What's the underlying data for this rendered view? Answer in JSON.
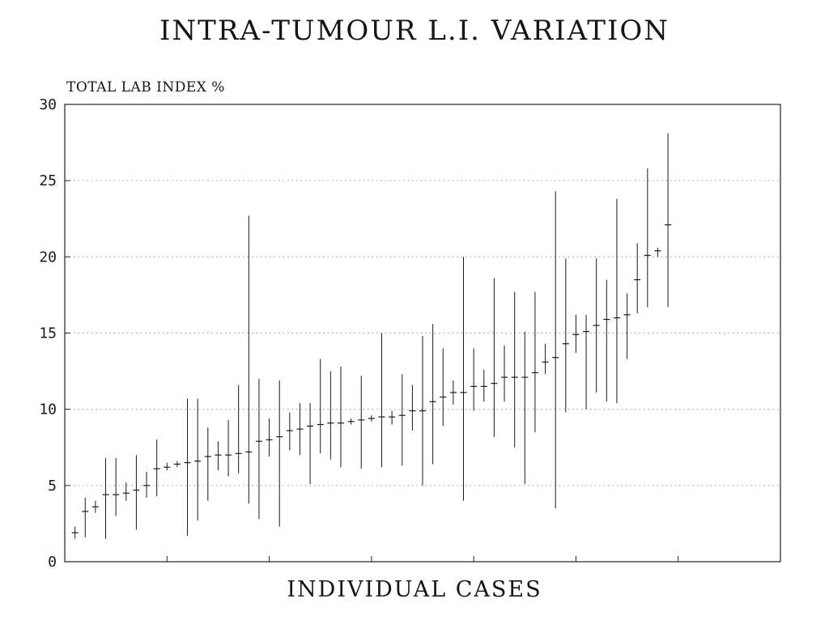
{
  "chart_data": {
    "type": "scatter",
    "title": "INTRA-TUMOUR L.I. VARIATION",
    "xlabel": "INDIVIDUAL CASES",
    "ylabel": "TOTAL LAB INDEX %",
    "ylim": [
      0,
      30
    ],
    "yticks": [
      "0",
      "5",
      "10",
      "15",
      "20",
      "25",
      "30"
    ],
    "xlim": [
      0,
      70
    ],
    "x_ticks_count": 6,
    "grid": "horizontal-dotted",
    "points": [
      {
        "x": 1,
        "y": 1.9,
        "lo": 1.5,
        "hi": 2.3
      },
      {
        "x": 2,
        "y": 3.3,
        "lo": 1.6,
        "hi": 4.2
      },
      {
        "x": 3,
        "y": 3.6,
        "lo": 3.2,
        "hi": 4.0
      },
      {
        "x": 4,
        "y": 4.4,
        "lo": 1.5,
        "hi": 6.8
      },
      {
        "x": 5,
        "y": 4.4,
        "lo": 3.0,
        "hi": 6.8
      },
      {
        "x": 6,
        "y": 4.5,
        "lo": 4.0,
        "hi": 5.2
      },
      {
        "x": 7,
        "y": 4.7,
        "lo": 2.1,
        "hi": 7.0
      },
      {
        "x": 8,
        "y": 5.0,
        "lo": 4.2,
        "hi": 5.9
      },
      {
        "x": 9,
        "y": 6.1,
        "lo": 4.3,
        "hi": 8.0
      },
      {
        "x": 10,
        "y": 6.2,
        "lo": 6.0,
        "hi": 6.5
      },
      {
        "x": 11,
        "y": 6.4,
        "lo": 6.2,
        "hi": 6.6
      },
      {
        "x": 12,
        "y": 6.5,
        "lo": 1.7,
        "hi": 10.7
      },
      {
        "x": 13,
        "y": 6.6,
        "lo": 2.7,
        "hi": 10.7
      },
      {
        "x": 14,
        "y": 6.9,
        "lo": 4.0,
        "hi": 8.8
      },
      {
        "x": 15,
        "y": 7.0,
        "lo": 6.0,
        "hi": 7.9
      },
      {
        "x": 16,
        "y": 7.0,
        "lo": 5.6,
        "hi": 9.3
      },
      {
        "x": 17,
        "y": 7.1,
        "lo": 5.8,
        "hi": 11.6
      },
      {
        "x": 18,
        "y": 7.2,
        "lo": 3.8,
        "hi": 22.7
      },
      {
        "x": 19,
        "y": 7.9,
        "lo": 2.8,
        "hi": 12.0
      },
      {
        "x": 20,
        "y": 8.0,
        "lo": 6.9,
        "hi": 9.4
      },
      {
        "x": 21,
        "y": 8.2,
        "lo": 2.3,
        "hi": 11.9
      },
      {
        "x": 22,
        "y": 8.6,
        "lo": 7.3,
        "hi": 9.8
      },
      {
        "x": 23,
        "y": 8.7,
        "lo": 7.0,
        "hi": 10.4
      },
      {
        "x": 24,
        "y": 8.9,
        "lo": 5.1,
        "hi": 10.4
      },
      {
        "x": 25,
        "y": 9.0,
        "lo": 7.1,
        "hi": 13.3
      },
      {
        "x": 26,
        "y": 9.1,
        "lo": 6.7,
        "hi": 12.5
      },
      {
        "x": 27,
        "y": 9.1,
        "lo": 6.2,
        "hi": 12.8
      },
      {
        "x": 28,
        "y": 9.2,
        "lo": 9.0,
        "hi": 9.4
      },
      {
        "x": 29,
        "y": 9.3,
        "lo": 6.1,
        "hi": 12.2
      },
      {
        "x": 30,
        "y": 9.4,
        "lo": 9.2,
        "hi": 9.6
      },
      {
        "x": 31,
        "y": 9.5,
        "lo": 6.2,
        "hi": 15.0
      },
      {
        "x": 32,
        "y": 9.5,
        "lo": 9.0,
        "hi": 9.9
      },
      {
        "x": 33,
        "y": 9.6,
        "lo": 6.3,
        "hi": 12.3
      },
      {
        "x": 34,
        "y": 9.9,
        "lo": 8.6,
        "hi": 11.6
      },
      {
        "x": 35,
        "y": 9.9,
        "lo": 5.0,
        "hi": 14.8
      },
      {
        "x": 36,
        "y": 10.5,
        "lo": 6.4,
        "hi": 15.6
      },
      {
        "x": 37,
        "y": 10.8,
        "lo": 8.9,
        "hi": 14.0
      },
      {
        "x": 38,
        "y": 11.1,
        "lo": 10.3,
        "hi": 11.9
      },
      {
        "x": 39,
        "y": 11.1,
        "lo": 4.0,
        "hi": 20.0
      },
      {
        "x": 40,
        "y": 11.5,
        "lo": 9.9,
        "hi": 14.0
      },
      {
        "x": 41,
        "y": 11.5,
        "lo": 10.5,
        "hi": 12.6
      },
      {
        "x": 42,
        "y": 11.7,
        "lo": 8.2,
        "hi": 18.6
      },
      {
        "x": 43,
        "y": 12.1,
        "lo": 10.5,
        "hi": 14.2
      },
      {
        "x": 44,
        "y": 12.1,
        "lo": 7.5,
        "hi": 17.7
      },
      {
        "x": 45,
        "y": 12.1,
        "lo": 5.1,
        "hi": 15.1
      },
      {
        "x": 46,
        "y": 12.4,
        "lo": 8.5,
        "hi": 17.7
      },
      {
        "x": 47,
        "y": 13.1,
        "lo": 12.3,
        "hi": 14.3
      },
      {
        "x": 48,
        "y": 13.4,
        "lo": 3.5,
        "hi": 24.3
      },
      {
        "x": 49,
        "y": 14.3,
        "lo": 9.8,
        "hi": 19.9
      },
      {
        "x": 50,
        "y": 14.9,
        "lo": 13.7,
        "hi": 16.2
      },
      {
        "x": 51,
        "y": 15.1,
        "lo": 10.0,
        "hi": 16.2
      },
      {
        "x": 52,
        "y": 15.5,
        "lo": 11.1,
        "hi": 19.9
      },
      {
        "x": 53,
        "y": 15.9,
        "lo": 10.5,
        "hi": 18.5
      },
      {
        "x": 54,
        "y": 16.0,
        "lo": 10.4,
        "hi": 23.8
      },
      {
        "x": 55,
        "y": 16.2,
        "lo": 13.3,
        "hi": 17.6
      },
      {
        "x": 56,
        "y": 18.5,
        "lo": 16.3,
        "hi": 20.9
      },
      {
        "x": 57,
        "y": 20.1,
        "lo": 16.7,
        "hi": 25.8
      },
      {
        "x": 58,
        "y": 20.4,
        "lo": 20.0,
        "hi": 20.6
      },
      {
        "x": 59,
        "y": 22.1,
        "lo": 16.7,
        "hi": 28.1
      }
    ]
  }
}
